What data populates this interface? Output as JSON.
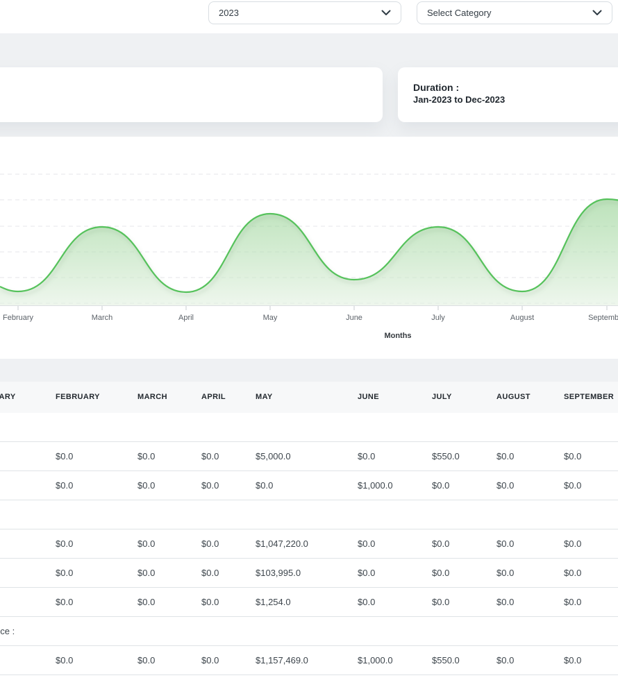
{
  "filters": {
    "year_select": {
      "value": "2023"
    },
    "category_select": {
      "value": "Select Category"
    }
  },
  "duration_card": {
    "title": "Duration :",
    "range": "Jan-2023 to Dec-2023"
  },
  "chart": {
    "axis_title": "Months",
    "month_labels": [
      "February",
      "March",
      "April",
      "May",
      "June",
      "July",
      "August",
      "September"
    ]
  },
  "chart_data": {
    "type": "area",
    "categories": [
      "February",
      "March",
      "April",
      "May",
      "June",
      "July",
      "August",
      "September"
    ],
    "values_fraction_of_plot_height": [
      0.09,
      0.5,
      0.08,
      0.58,
      0.16,
      0.5,
      0.09,
      0.68
    ],
    "title": "",
    "xlabel": "Months",
    "ylabel": "",
    "note": "Smooth green area curve with peaks at March, May, July and September and valleys at February, April, June and August; y-axis labels are cropped out of the viewport; horizontal dashed gridlines; January label off-screen left, later months off-screen right",
    "line_color": "#57c25b",
    "fill": "vertical green gradient fading downward",
    "grid": "horizontal dashed lines",
    "legend": "none"
  },
  "table": {
    "columns": [
      "JANUARY",
      "FEBRUARY",
      "MARCH",
      "APRIL",
      "MAY",
      "JUNE",
      "JULY",
      "AUGUST",
      "SEPTEMBER"
    ],
    "rows": [
      {
        "kind": "section",
        "label": ""
      },
      {
        "kind": "data",
        "cells": [
          "$0.0",
          "$0.0",
          "$0.0",
          "$5,000.0",
          "$0.0",
          "$550.0",
          "$0.0",
          "$0.0"
        ]
      },
      {
        "kind": "data",
        "cells": [
          "$0.0",
          "$0.0",
          "$0.0",
          "$0.0",
          "$1,000.0",
          "$0.0",
          "$0.0",
          "$0.0"
        ]
      },
      {
        "kind": "section",
        "label": ""
      },
      {
        "kind": "data",
        "cells": [
          "$0.0",
          "$0.0",
          "$0.0",
          "$1,047,220.0",
          "$0.0",
          "$0.0",
          "$0.0",
          "$0.0"
        ]
      },
      {
        "kind": "data",
        "cells": [
          "$0.0",
          "$0.0",
          "$0.0",
          "$103,995.0",
          "$0.0",
          "$0.0",
          "$0.0",
          "$0.0"
        ]
      },
      {
        "kind": "data",
        "cells": [
          "$0.0",
          "$0.0",
          "$0.0",
          "$1,254.0",
          "$0.0",
          "$0.0",
          "$0.0",
          "$0.0"
        ]
      },
      {
        "kind": "section",
        "label": "nce :"
      },
      {
        "kind": "data",
        "cells": [
          "$0.0",
          "$0.0",
          "$0.0",
          "$1,157,469.0",
          "$1,000.0",
          "$550.0",
          "$0.0",
          "$0.0"
        ]
      }
    ]
  },
  "colors": {
    "accent_green": "#57c25b",
    "page_gray": "#eff1f3",
    "table_header_bg": "#f7f8f9",
    "row_border": "#dfe3e6"
  }
}
